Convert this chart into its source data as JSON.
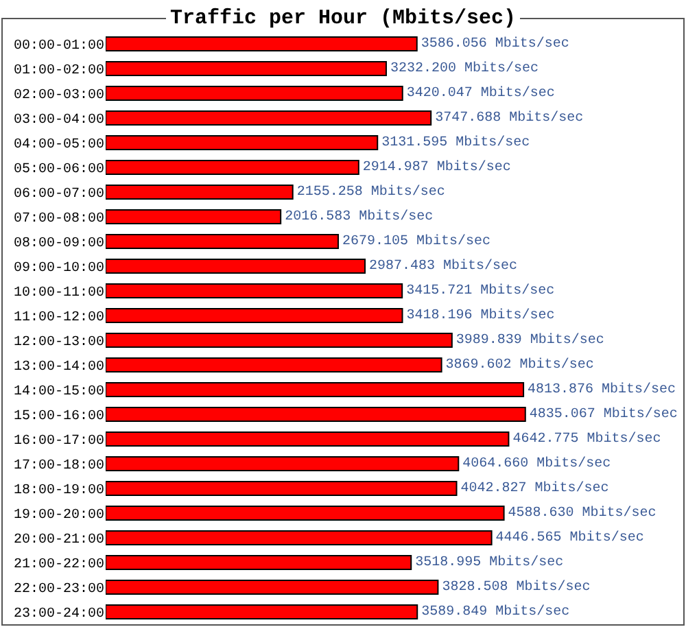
{
  "chart_data": {
    "type": "bar",
    "orientation": "horizontal",
    "title": "Traffic per Hour (Mbits/sec)",
    "categories": [
      "00:00-01:00",
      "01:00-02:00",
      "02:00-03:00",
      "03:00-04:00",
      "04:00-05:00",
      "05:00-06:00",
      "06:00-07:00",
      "07:00-08:00",
      "08:00-09:00",
      "09:00-10:00",
      "10:00-11:00",
      "11:00-12:00",
      "12:00-13:00",
      "13:00-14:00",
      "14:00-15:00",
      "15:00-16:00",
      "16:00-17:00",
      "17:00-18:00",
      "18:00-19:00",
      "19:00-20:00",
      "20:00-21:00",
      "21:00-22:00",
      "22:00-23:00",
      "23:00-24:00"
    ],
    "values": [
      3586.056,
      3232.2,
      3420.047,
      3747.688,
      3131.595,
      2914.987,
      2155.258,
      2016.583,
      2679.105,
      2987.483,
      3415.721,
      3418.196,
      3989.839,
      3869.602,
      4813.876,
      4835.067,
      4642.775,
      4064.66,
      4042.827,
      4588.63,
      4446.565,
      3518.995,
      3828.508,
      3589.849
    ],
    "color": "#ff0000",
    "value_labels": [
      "3586.056 Mbits/sec",
      "3232.200 Mbits/sec",
      "3420.047 Mbits/sec",
      "3747.688 Mbits/sec",
      "3131.595 Mbits/sec",
      "2914.987 Mbits/sec",
      "2155.258 Mbits/sec",
      "2016.583 Mbits/sec",
      "2679.105 Mbits/sec",
      "2987.483 Mbits/sec",
      "3415.721 Mbits/sec",
      "3418.196 Mbits/sec",
      "3989.839 Mbits/sec",
      "3869.602 Mbits/sec",
      "4813.876 Mbits/sec",
      "4835.067 Mbits/sec",
      "4642.775 Mbits/sec",
      "4064.660 Mbits/sec",
      "4042.827 Mbits/sec",
      "4588.630 Mbits/sec",
      "4446.565 Mbits/sec",
      "3518.995 Mbits/sec",
      "3828.508 Mbits/sec",
      "3589.849 Mbits/sec"
    ],
    "tick_labels": "y"
  }
}
